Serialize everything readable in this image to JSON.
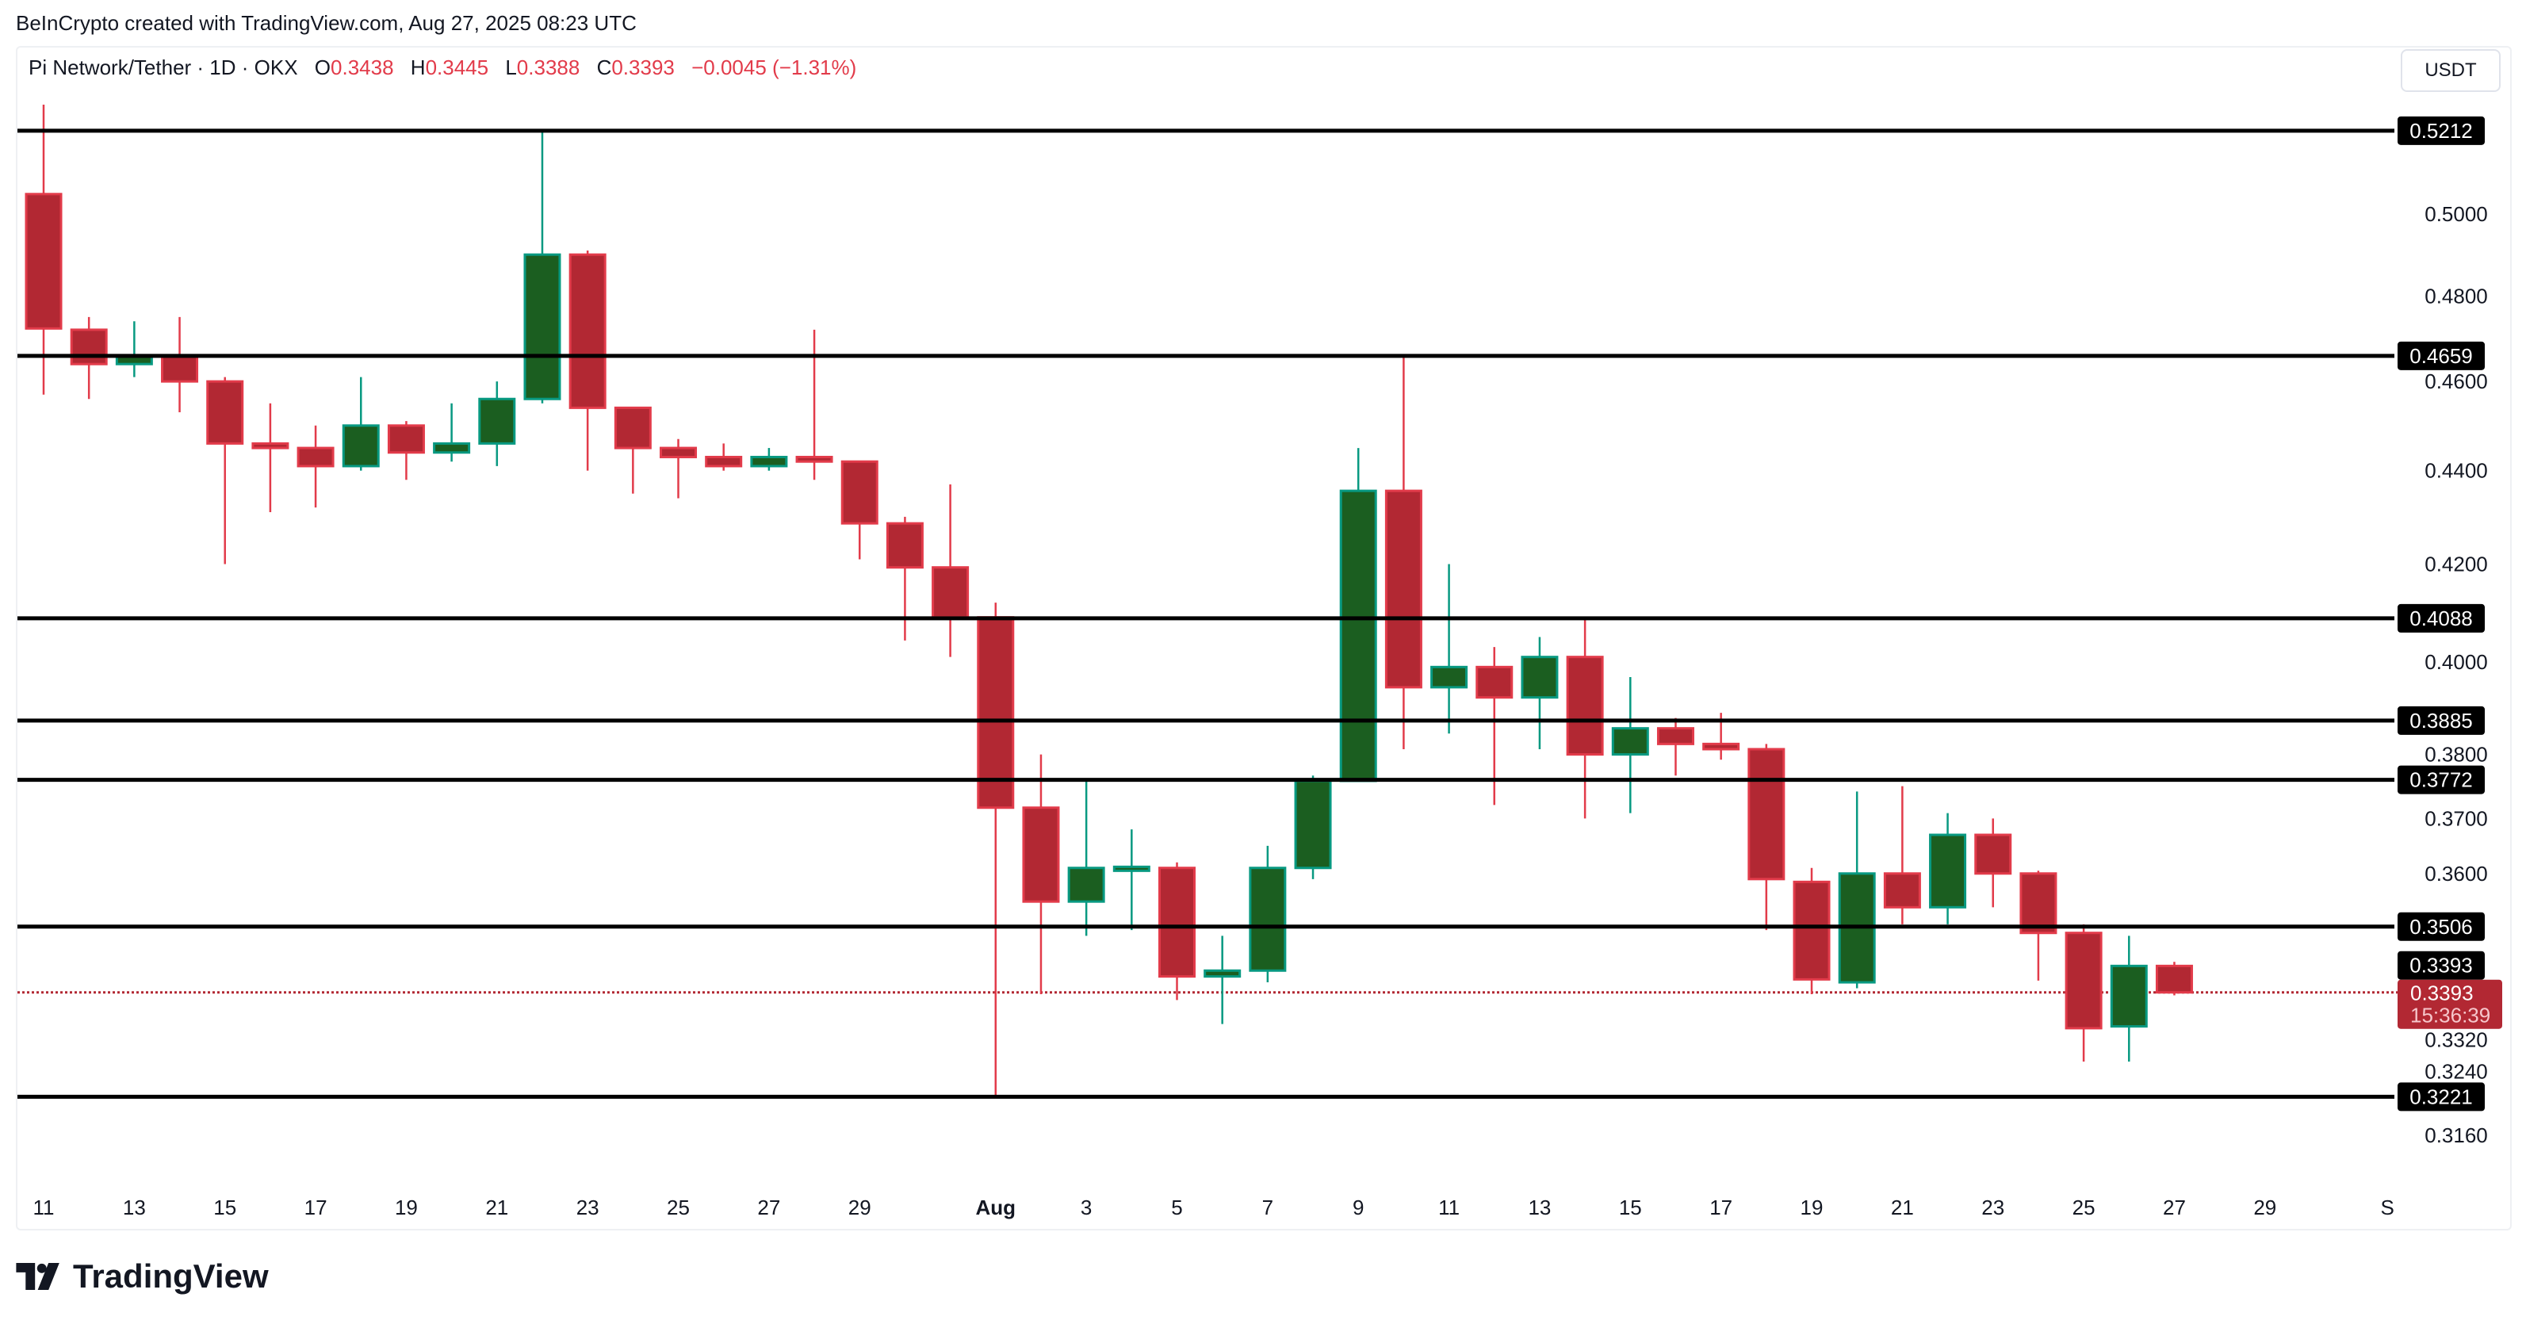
{
  "credit": "BeInCrypto created with TradingView.com, Aug 27, 2025 08:23 UTC",
  "legend": {
    "symbol": "Pi Network/Tether · 1D · OKX",
    "o_label": "O",
    "o": "0.3438",
    "h_label": "H",
    "h": "0.3445",
    "l_label": "L",
    "l": "0.3388",
    "c_label": "C",
    "c": "0.3393",
    "change": "−0.0045 (−1.31%)"
  },
  "currency_button": "USDT",
  "logo_text": "TradingView",
  "colors": {
    "up_body": "#1b5e20",
    "up_border": "#089981",
    "down_body": "#b22833",
    "down_border": "#e23b4a",
    "level": "#000000"
  },
  "chart_data": {
    "type": "candlestick",
    "scale": "log",
    "ylim": [
      0.3105,
      0.535
    ],
    "y_ticks": [
      "0.5000",
      "0.4800",
      "0.4600",
      "0.4400",
      "0.4200",
      "0.4000",
      "0.3800",
      "0.3700",
      "0.3600",
      "0.3320",
      "0.3240",
      "0.3160"
    ],
    "x_labels": [
      {
        "i": 0,
        "t": "11"
      },
      {
        "i": 2,
        "t": "13"
      },
      {
        "i": 4,
        "t": "15"
      },
      {
        "i": 6,
        "t": "17"
      },
      {
        "i": 8,
        "t": "19"
      },
      {
        "i": 10,
        "t": "21"
      },
      {
        "i": 12,
        "t": "23"
      },
      {
        "i": 14,
        "t": "25"
      },
      {
        "i": 16,
        "t": "27"
      },
      {
        "i": 18,
        "t": "29"
      },
      {
        "i": 21,
        "t": "Aug"
      },
      {
        "i": 23,
        "t": "3"
      },
      {
        "i": 25,
        "t": "5"
      },
      {
        "i": 27,
        "t": "7"
      },
      {
        "i": 29,
        "t": "9"
      },
      {
        "i": 31,
        "t": "11"
      },
      {
        "i": 33,
        "t": "13"
      },
      {
        "i": 35,
        "t": "15"
      },
      {
        "i": 37,
        "t": "17"
      },
      {
        "i": 39,
        "t": "19"
      },
      {
        "i": 41,
        "t": "21"
      },
      {
        "i": 43,
        "t": "23"
      },
      {
        "i": 45,
        "t": "25"
      },
      {
        "i": 47,
        "t": "27"
      },
      {
        "i": 49,
        "t": "29"
      },
      {
        "i": 51.7,
        "t": "S"
      }
    ],
    "levels": [
      "0.5212",
      "0.4659",
      "0.4088",
      "0.3885",
      "0.3772",
      "0.3506",
      "0.3221"
    ],
    "extra_label": "0.3393",
    "current_price": {
      "value": "0.3393",
      "countdown": "15:36:39"
    },
    "candles": [
      [
        0.505,
        0.528,
        0.457,
        0.4723
      ],
      [
        0.472,
        0.475,
        0.456,
        0.464
      ],
      [
        0.464,
        0.474,
        0.461,
        0.466
      ],
      [
        0.466,
        0.475,
        0.453,
        0.46
      ],
      [
        0.46,
        0.461,
        0.42,
        0.446
      ],
      [
        0.446,
        0.455,
        0.431,
        0.445
      ],
      [
        0.445,
        0.45,
        0.432,
        0.441
      ],
      [
        0.441,
        0.461,
        0.44,
        0.45
      ],
      [
        0.45,
        0.451,
        0.438,
        0.444
      ],
      [
        0.444,
        0.455,
        0.442,
        0.446
      ],
      [
        0.446,
        0.46,
        0.441,
        0.456
      ],
      [
        0.456,
        0.5212,
        0.455,
        0.49
      ],
      [
        0.49,
        0.491,
        0.44,
        0.454
      ],
      [
        0.454,
        0.454,
        0.435,
        0.445
      ],
      [
        0.445,
        0.447,
        0.434,
        0.443
      ],
      [
        0.443,
        0.446,
        0.44,
        0.441
      ],
      [
        0.441,
        0.445,
        0.44,
        0.443
      ],
      [
        0.443,
        0.472,
        0.438,
        0.442
      ],
      [
        0.442,
        0.442,
        0.421,
        0.4286
      ],
      [
        0.4286,
        0.43,
        0.4043,
        0.4193
      ],
      [
        0.4193,
        0.437,
        0.401,
        0.409
      ],
      [
        0.409,
        0.412,
        0.3221,
        0.372
      ],
      [
        0.372,
        0.382,
        0.339,
        0.355
      ],
      [
        0.355,
        0.377,
        0.349,
        0.361
      ],
      [
        0.3605,
        0.368,
        0.35,
        0.3612
      ],
      [
        0.361,
        0.362,
        0.338,
        0.342
      ],
      [
        0.342,
        0.349,
        0.334,
        0.343
      ],
      [
        0.343,
        0.365,
        0.341,
        0.361
      ],
      [
        0.361,
        0.378,
        0.359,
        0.377
      ],
      [
        0.377,
        0.445,
        0.377,
        0.4356
      ],
      [
        0.4356,
        0.466,
        0.383,
        0.395
      ],
      [
        0.395,
        0.42,
        0.386,
        0.399
      ],
      [
        0.399,
        0.403,
        0.3725,
        0.393
      ],
      [
        0.393,
        0.405,
        0.383,
        0.401
      ],
      [
        0.401,
        0.409,
        0.37,
        0.382
      ],
      [
        0.382,
        0.397,
        0.371,
        0.387
      ],
      [
        0.387,
        0.389,
        0.378,
        0.384
      ],
      [
        0.384,
        0.39,
        0.381,
        0.383
      ],
      [
        0.383,
        0.384,
        0.35,
        0.359
      ],
      [
        0.3585,
        0.361,
        0.339,
        0.3415
      ],
      [
        0.341,
        0.375,
        0.34,
        0.36
      ],
      [
        0.36,
        0.376,
        0.351,
        0.354
      ],
      [
        0.354,
        0.371,
        0.351,
        0.367
      ],
      [
        0.367,
        0.37,
        0.354,
        0.36
      ],
      [
        0.36,
        0.3605,
        0.3413,
        0.3495
      ],
      [
        0.3495,
        0.351,
        0.3278,
        0.3333
      ],
      [
        0.3336,
        0.349,
        0.3278,
        0.3438
      ],
      [
        0.3438,
        0.3445,
        0.3388,
        0.3393
      ]
    ]
  }
}
